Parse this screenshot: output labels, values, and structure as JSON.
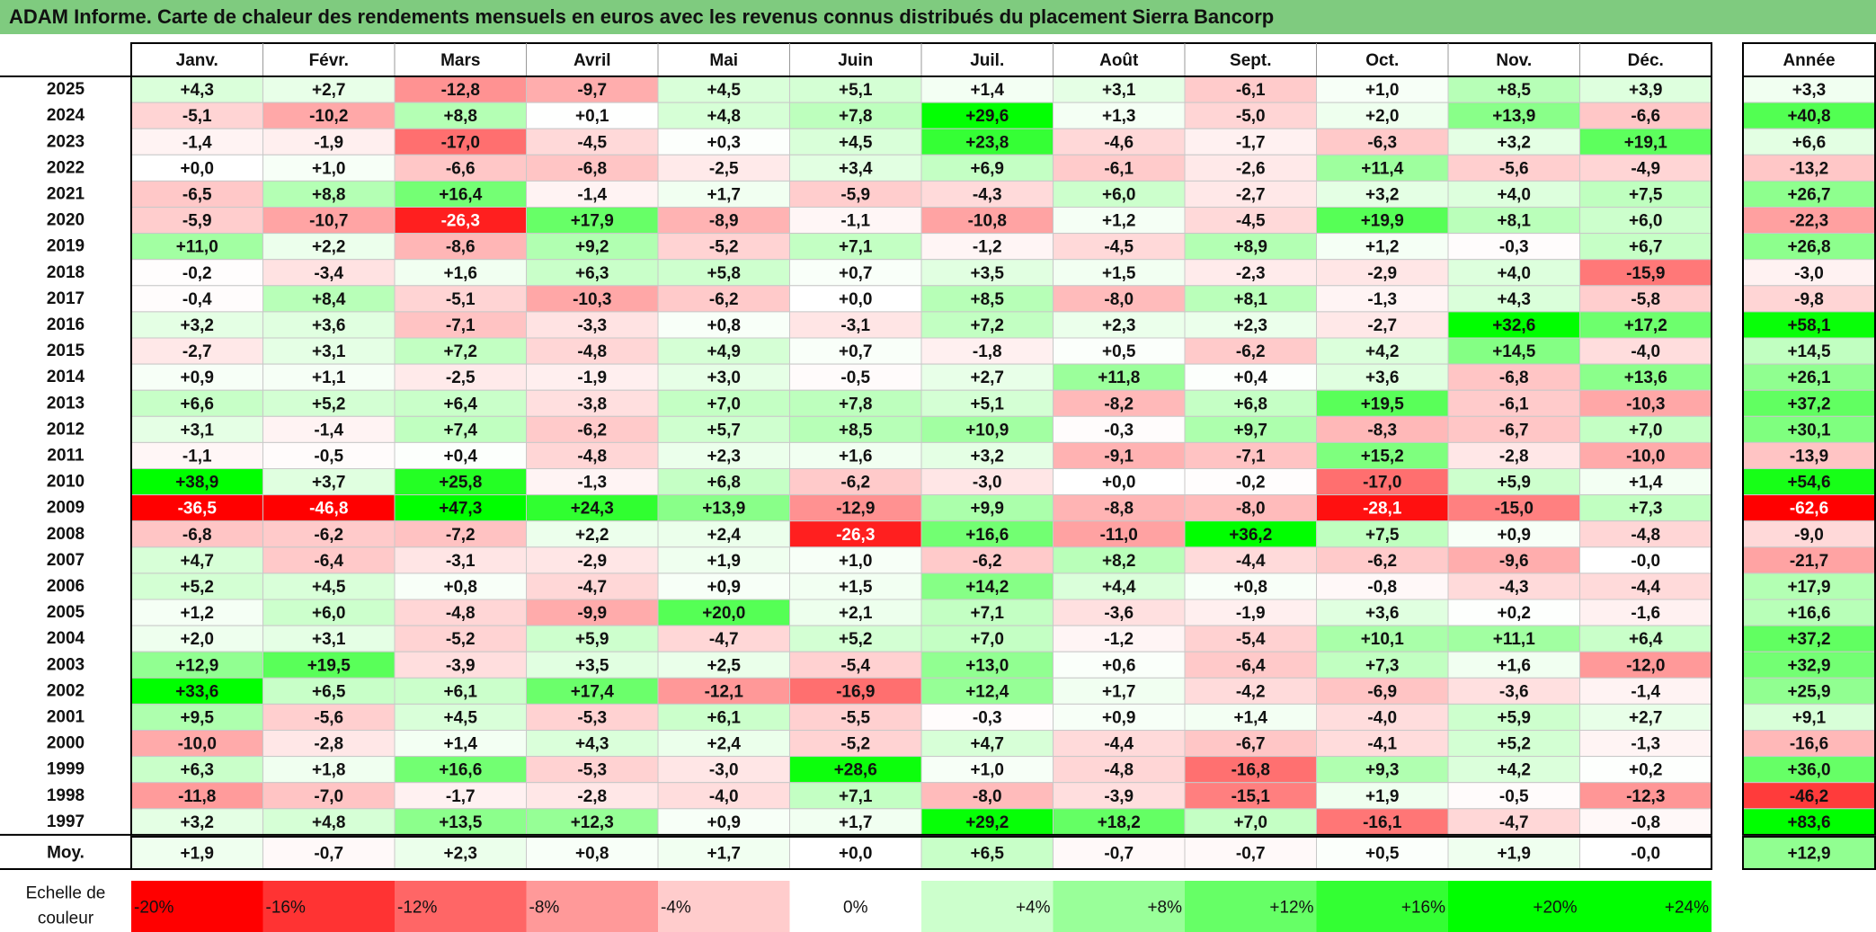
{
  "title": "ADAM Informe. Carte de chaleur des rendements mensuels en euros avec les revenus connus distribués du placement Sierra Bancorp",
  "chart_data": {
    "type": "heatmap",
    "columns": [
      "Janv.",
      "Févr.",
      "Mars",
      "Avril",
      "Mai",
      "Juin",
      "Juil.",
      "Août",
      "Sept.",
      "Oct.",
      "Nov.",
      "Déc."
    ],
    "year_column_label": "Année",
    "rows": [
      {
        "year": "2025",
        "values": [
          "+4,3",
          "+2,7",
          "-12,8",
          "-9,7",
          "+4,5",
          "+5,1",
          "+1,4",
          "+3,1",
          "-6,1",
          "+1,0",
          "+8,5",
          "+3,9"
        ],
        "annual": "+3,3"
      },
      {
        "year": "2024",
        "values": [
          "-5,1",
          "-10,2",
          "+8,8",
          "+0,1",
          "+4,8",
          "+7,8",
          "+29,6",
          "+1,3",
          "-5,0",
          "+2,0",
          "+13,9",
          "-6,6"
        ],
        "annual": "+40,8"
      },
      {
        "year": "2023",
        "values": [
          "-1,4",
          "-1,9",
          "-17,0",
          "-4,5",
          "+0,3",
          "+4,5",
          "+23,8",
          "-4,6",
          "-1,7",
          "-6,3",
          "+3,2",
          "+19,1"
        ],
        "annual": "+6,6"
      },
      {
        "year": "2022",
        "values": [
          "+0,0",
          "+1,0",
          "-6,6",
          "-6,8",
          "-2,5",
          "+3,4",
          "+6,9",
          "-6,1",
          "-2,6",
          "+11,4",
          "-5,6",
          "-4,9"
        ],
        "annual": "-13,2"
      },
      {
        "year": "2021",
        "values": [
          "-6,5",
          "+8,8",
          "+16,4",
          "-1,4",
          "+1,7",
          "-5,9",
          "-4,3",
          "+6,0",
          "-2,7",
          "+3,2",
          "+4,0",
          "+7,5"
        ],
        "annual": "+26,7"
      },
      {
        "year": "2020",
        "values": [
          "-5,9",
          "-10,7",
          "-26,3",
          "+17,9",
          "-8,9",
          "-1,1",
          "-10,8",
          "+1,2",
          "-4,5",
          "+19,9",
          "+8,1",
          "+6,0"
        ],
        "annual": "-22,3"
      },
      {
        "year": "2019",
        "values": [
          "+11,0",
          "+2,2",
          "-8,6",
          "+9,2",
          "-5,2",
          "+7,1",
          "-1,2",
          "-4,5",
          "+8,9",
          "+1,2",
          "-0,3",
          "+6,7"
        ],
        "annual": "+26,8"
      },
      {
        "year": "2018",
        "values": [
          "-0,2",
          "-3,4",
          "+1,6",
          "+6,3",
          "+5,8",
          "+0,7",
          "+3,5",
          "+1,5",
          "-2,3",
          "-2,9",
          "+4,0",
          "-15,9"
        ],
        "annual": "-3,0"
      },
      {
        "year": "2017",
        "values": [
          "-0,4",
          "+8,4",
          "-5,1",
          "-10,3",
          "-6,2",
          "+0,0",
          "+8,5",
          "-8,0",
          "+8,1",
          "-1,3",
          "+4,3",
          "-5,8"
        ],
        "annual": "-9,8"
      },
      {
        "year": "2016",
        "values": [
          "+3,2",
          "+3,6",
          "-7,1",
          "-3,3",
          "+0,8",
          "-3,1",
          "+7,2",
          "+2,3",
          "+2,3",
          "-2,7",
          "+32,6",
          "+17,2"
        ],
        "annual": "+58,1"
      },
      {
        "year": "2015",
        "values": [
          "-2,7",
          "+3,1",
          "+7,2",
          "-4,8",
          "+4,9",
          "+0,7",
          "-1,8",
          "+0,5",
          "-6,2",
          "+4,2",
          "+14,5",
          "-4,0"
        ],
        "annual": "+14,5"
      },
      {
        "year": "2014",
        "values": [
          "+0,9",
          "+1,1",
          "-2,5",
          "-1,9",
          "+3,0",
          "-0,5",
          "+2,7",
          "+11,8",
          "+0,4",
          "+3,6",
          "-6,8",
          "+13,6"
        ],
        "annual": "+26,1"
      },
      {
        "year": "2013",
        "values": [
          "+6,6",
          "+5,2",
          "+6,4",
          "-3,8",
          "+7,0",
          "+7,8",
          "+5,1",
          "-8,2",
          "+6,8",
          "+19,5",
          "-6,1",
          "-10,3"
        ],
        "annual": "+37,2"
      },
      {
        "year": "2012",
        "values": [
          "+3,1",
          "-1,4",
          "+7,4",
          "-6,2",
          "+5,7",
          "+8,5",
          "+10,9",
          "-0,3",
          "+9,7",
          "-8,3",
          "-6,7",
          "+7,0"
        ],
        "annual": "+30,1"
      },
      {
        "year": "2011",
        "values": [
          "-1,1",
          "-0,5",
          "+0,4",
          "-4,8",
          "+2,3",
          "+1,6",
          "+3,2",
          "-9,1",
          "-7,1",
          "+15,2",
          "-2,8",
          "-10,0"
        ],
        "annual": "-13,9"
      },
      {
        "year": "2010",
        "values": [
          "+38,9",
          "+3,7",
          "+25,8",
          "-1,3",
          "+6,8",
          "-6,2",
          "-3,0",
          "+0,0",
          "-0,2",
          "-17,0",
          "+5,9",
          "+1,4"
        ],
        "annual": "+54,6"
      },
      {
        "year": "2009",
        "values": [
          "-36,5",
          "-46,8",
          "+47,3",
          "+24,3",
          "+13,9",
          "-12,9",
          "+9,9",
          "-8,8",
          "-8,0",
          "-28,1",
          "-15,0",
          "+7,3"
        ],
        "annual": "-62,6"
      },
      {
        "year": "2008",
        "values": [
          "-6,8",
          "-6,2",
          "-7,2",
          "+2,2",
          "+2,4",
          "-26,3",
          "+16,6",
          "-11,0",
          "+36,2",
          "+7,5",
          "+0,9",
          "-4,8"
        ],
        "annual": "-9,0"
      },
      {
        "year": "2007",
        "values": [
          "+4,7",
          "-6,4",
          "-3,1",
          "-2,9",
          "+1,9",
          "+1,0",
          "-6,2",
          "+8,2",
          "-4,4",
          "-6,2",
          "-9,6",
          "-0,0"
        ],
        "annual": "-21,7"
      },
      {
        "year": "2006",
        "values": [
          "+5,2",
          "+4,5",
          "+0,8",
          "-4,7",
          "+0,9",
          "+1,5",
          "+14,2",
          "+4,4",
          "+0,8",
          "-0,8",
          "-4,3",
          "-4,4"
        ],
        "annual": "+17,9"
      },
      {
        "year": "2005",
        "values": [
          "+1,2",
          "+6,0",
          "-4,8",
          "-9,9",
          "+20,0",
          "+2,1",
          "+7,1",
          "-3,6",
          "-1,9",
          "+3,6",
          "+0,2",
          "-1,6"
        ],
        "annual": "+16,6"
      },
      {
        "year": "2004",
        "values": [
          "+2,0",
          "+3,1",
          "-5,2",
          "+5,9",
          "-4,7",
          "+5,2",
          "+7,0",
          "-1,2",
          "-5,4",
          "+10,1",
          "+11,1",
          "+6,4"
        ],
        "annual": "+37,2"
      },
      {
        "year": "2003",
        "values": [
          "+12,9",
          "+19,5",
          "-3,9",
          "+3,5",
          "+2,5",
          "-5,4",
          "+13,0",
          "+0,6",
          "-6,4",
          "+7,3",
          "+1,6",
          "-12,0"
        ],
        "annual": "+32,9"
      },
      {
        "year": "2002",
        "values": [
          "+33,6",
          "+6,5",
          "+6,1",
          "+17,4",
          "-12,1",
          "-16,9",
          "+12,4",
          "+1,7",
          "-4,2",
          "-6,9",
          "-3,6",
          "-1,4"
        ],
        "annual": "+25,9"
      },
      {
        "year": "2001",
        "values": [
          "+9,5",
          "-5,6",
          "+4,5",
          "-5,3",
          "+6,1",
          "-5,5",
          "-0,3",
          "+0,9",
          "+1,4",
          "-4,0",
          "+5,9",
          "+2,7"
        ],
        "annual": "+9,1"
      },
      {
        "year": "2000",
        "values": [
          "-10,0",
          "-2,8",
          "+1,4",
          "+4,3",
          "+2,4",
          "-5,2",
          "+4,7",
          "-4,4",
          "-6,7",
          "-4,1",
          "+5,2",
          "-1,3"
        ],
        "annual": "-16,6"
      },
      {
        "year": "1999",
        "values": [
          "+6,3",
          "+1,8",
          "+16,6",
          "-5,3",
          "-3,0",
          "+28,6",
          "+1,0",
          "-4,8",
          "-16,8",
          "+9,3",
          "+4,2",
          "+0,2"
        ],
        "annual": "+36,0"
      },
      {
        "year": "1998",
        "values": [
          "-11,8",
          "-7,0",
          "-1,7",
          "-2,8",
          "-4,0",
          "+7,1",
          "-8,0",
          "-3,9",
          "-15,1",
          "+1,9",
          "-0,5",
          "-12,3"
        ],
        "annual": "-46,2"
      },
      {
        "year": "1997",
        "values": [
          "+3,2",
          "+4,8",
          "+13,5",
          "+12,3",
          "+0,9",
          "+1,7",
          "+29,2",
          "+18,2",
          "+7,0",
          "-16,1",
          "-4,7",
          "-0,8"
        ],
        "annual": "+83,6"
      }
    ],
    "average_row": {
      "label": "Moy.",
      "values": [
        "+1,9",
        "-0,7",
        "+2,3",
        "+0,8",
        "+1,7",
        "+0,0",
        "+6,5",
        "-0,7",
        "-0,7",
        "+0,5",
        "+1,9",
        "-0,0"
      ],
      "annual": "+12,9"
    },
    "color_scale": {
      "label_line1": "Echelle de",
      "label_line2": "couleur",
      "stops": [
        "-20%",
        "-16%",
        "-12%",
        "-8%",
        "-4%",
        "0%",
        "+4%",
        "+8%",
        "+12%",
        "+16%",
        "+20%",
        "+24%"
      ],
      "stop_values": [
        -20,
        -16,
        -12,
        -8,
        -4,
        0,
        4,
        8,
        12,
        16,
        20,
        24
      ]
    },
    "colors": {
      "title_bg": "#7fcb7f",
      "negative_max": "#ff0000",
      "neutral": "#ffffff",
      "positive_max": "#00ff00"
    }
  }
}
